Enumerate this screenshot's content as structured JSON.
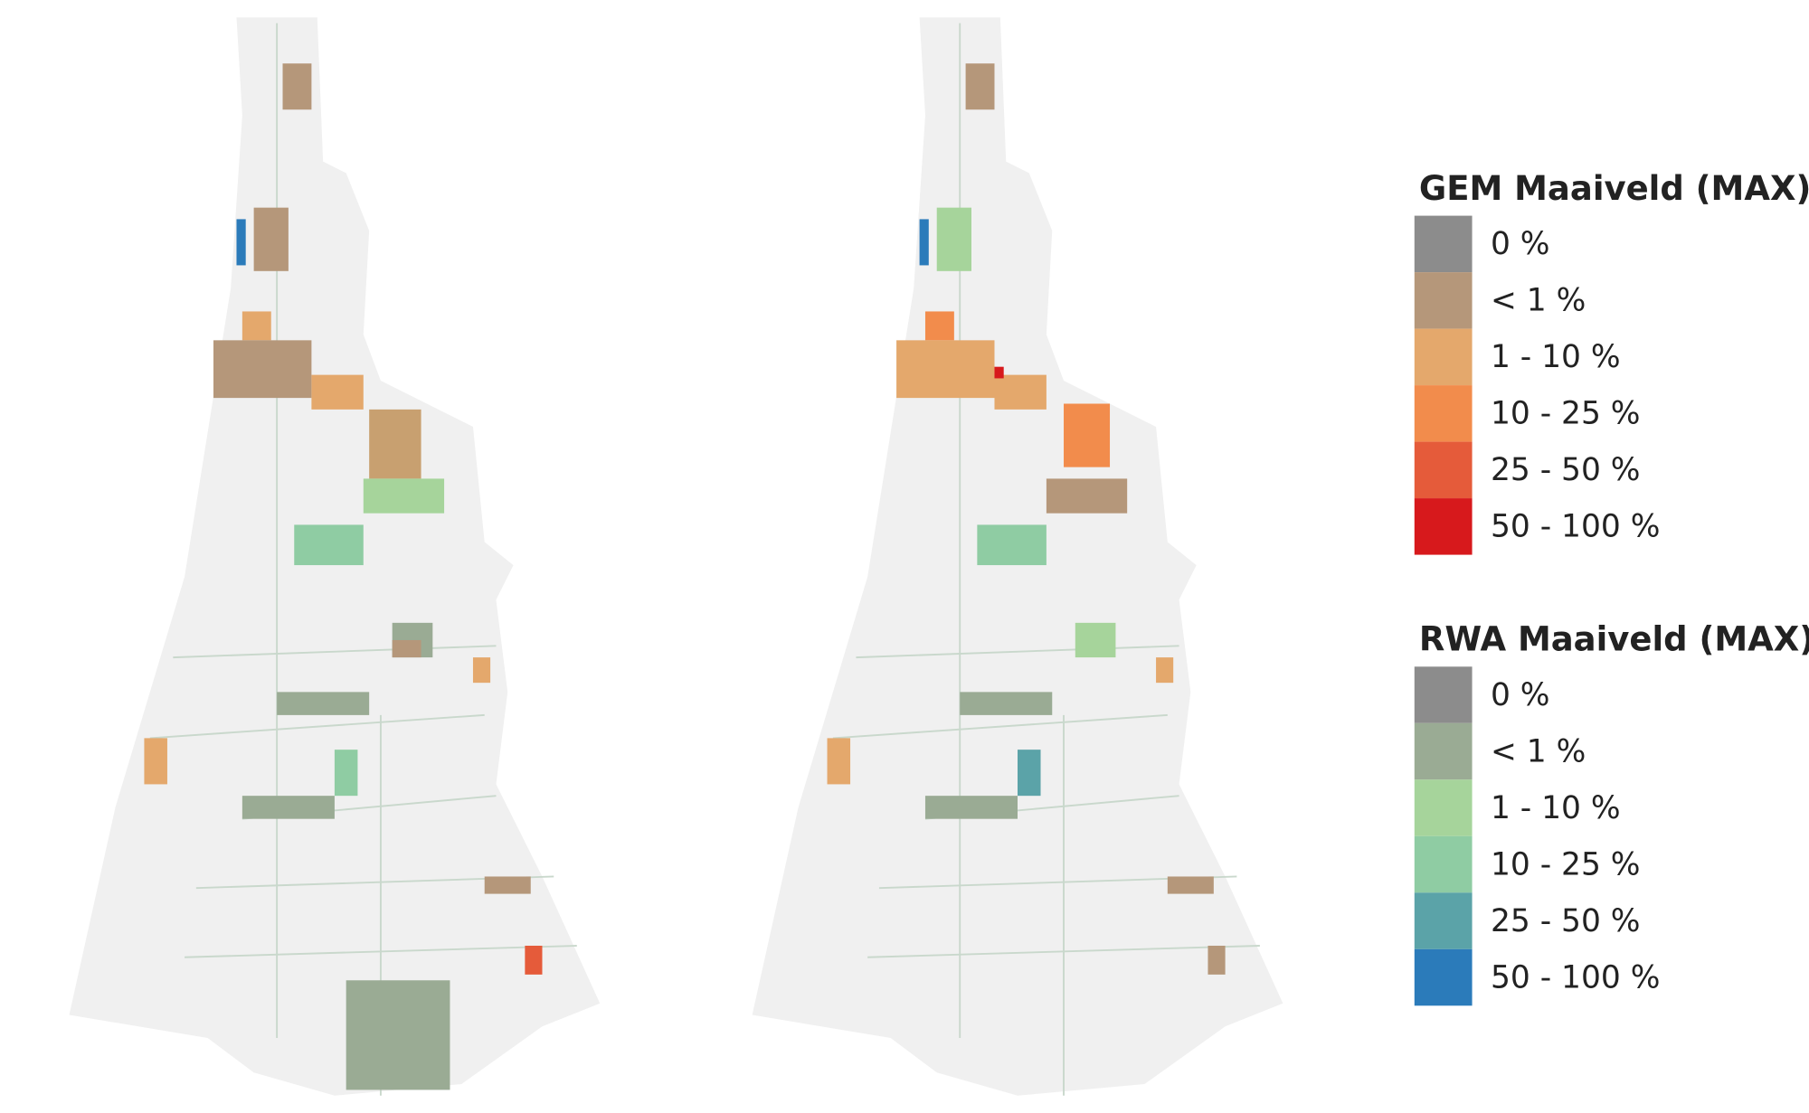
{
  "legends": [
    {
      "title": "GEM Maaiveld (MAX)",
      "items": [
        {
          "label": "0 %",
          "color": "#8c8c8c"
        },
        {
          "label": "< 1 %",
          "color": "#b5977a"
        },
        {
          "label": "1 - 10 %",
          "color": "#e4a86c"
        },
        {
          "label": "10 - 25 %",
          "color": "#f28c4c"
        },
        {
          "label": "25 - 50 %",
          "color": "#e55b3a"
        },
        {
          "label": "50 - 100 %",
          "color": "#d7191c"
        }
      ]
    },
    {
      "title": "RWA Maaiveld (MAX)",
      "items": [
        {
          "label": "0 %",
          "color": "#8c8c8c"
        },
        {
          "label": "< 1 %",
          "color": "#9aab94"
        },
        {
          "label": "1 - 10 %",
          "color": "#a6d49b"
        },
        {
          "label": "10 - 25 %",
          "color": "#8fcca3"
        },
        {
          "label": "25 - 50 %",
          "color": "#5ba3a8"
        },
        {
          "label": "50 - 100 %",
          "color": "#2b7bba"
        }
      ]
    }
  ]
}
